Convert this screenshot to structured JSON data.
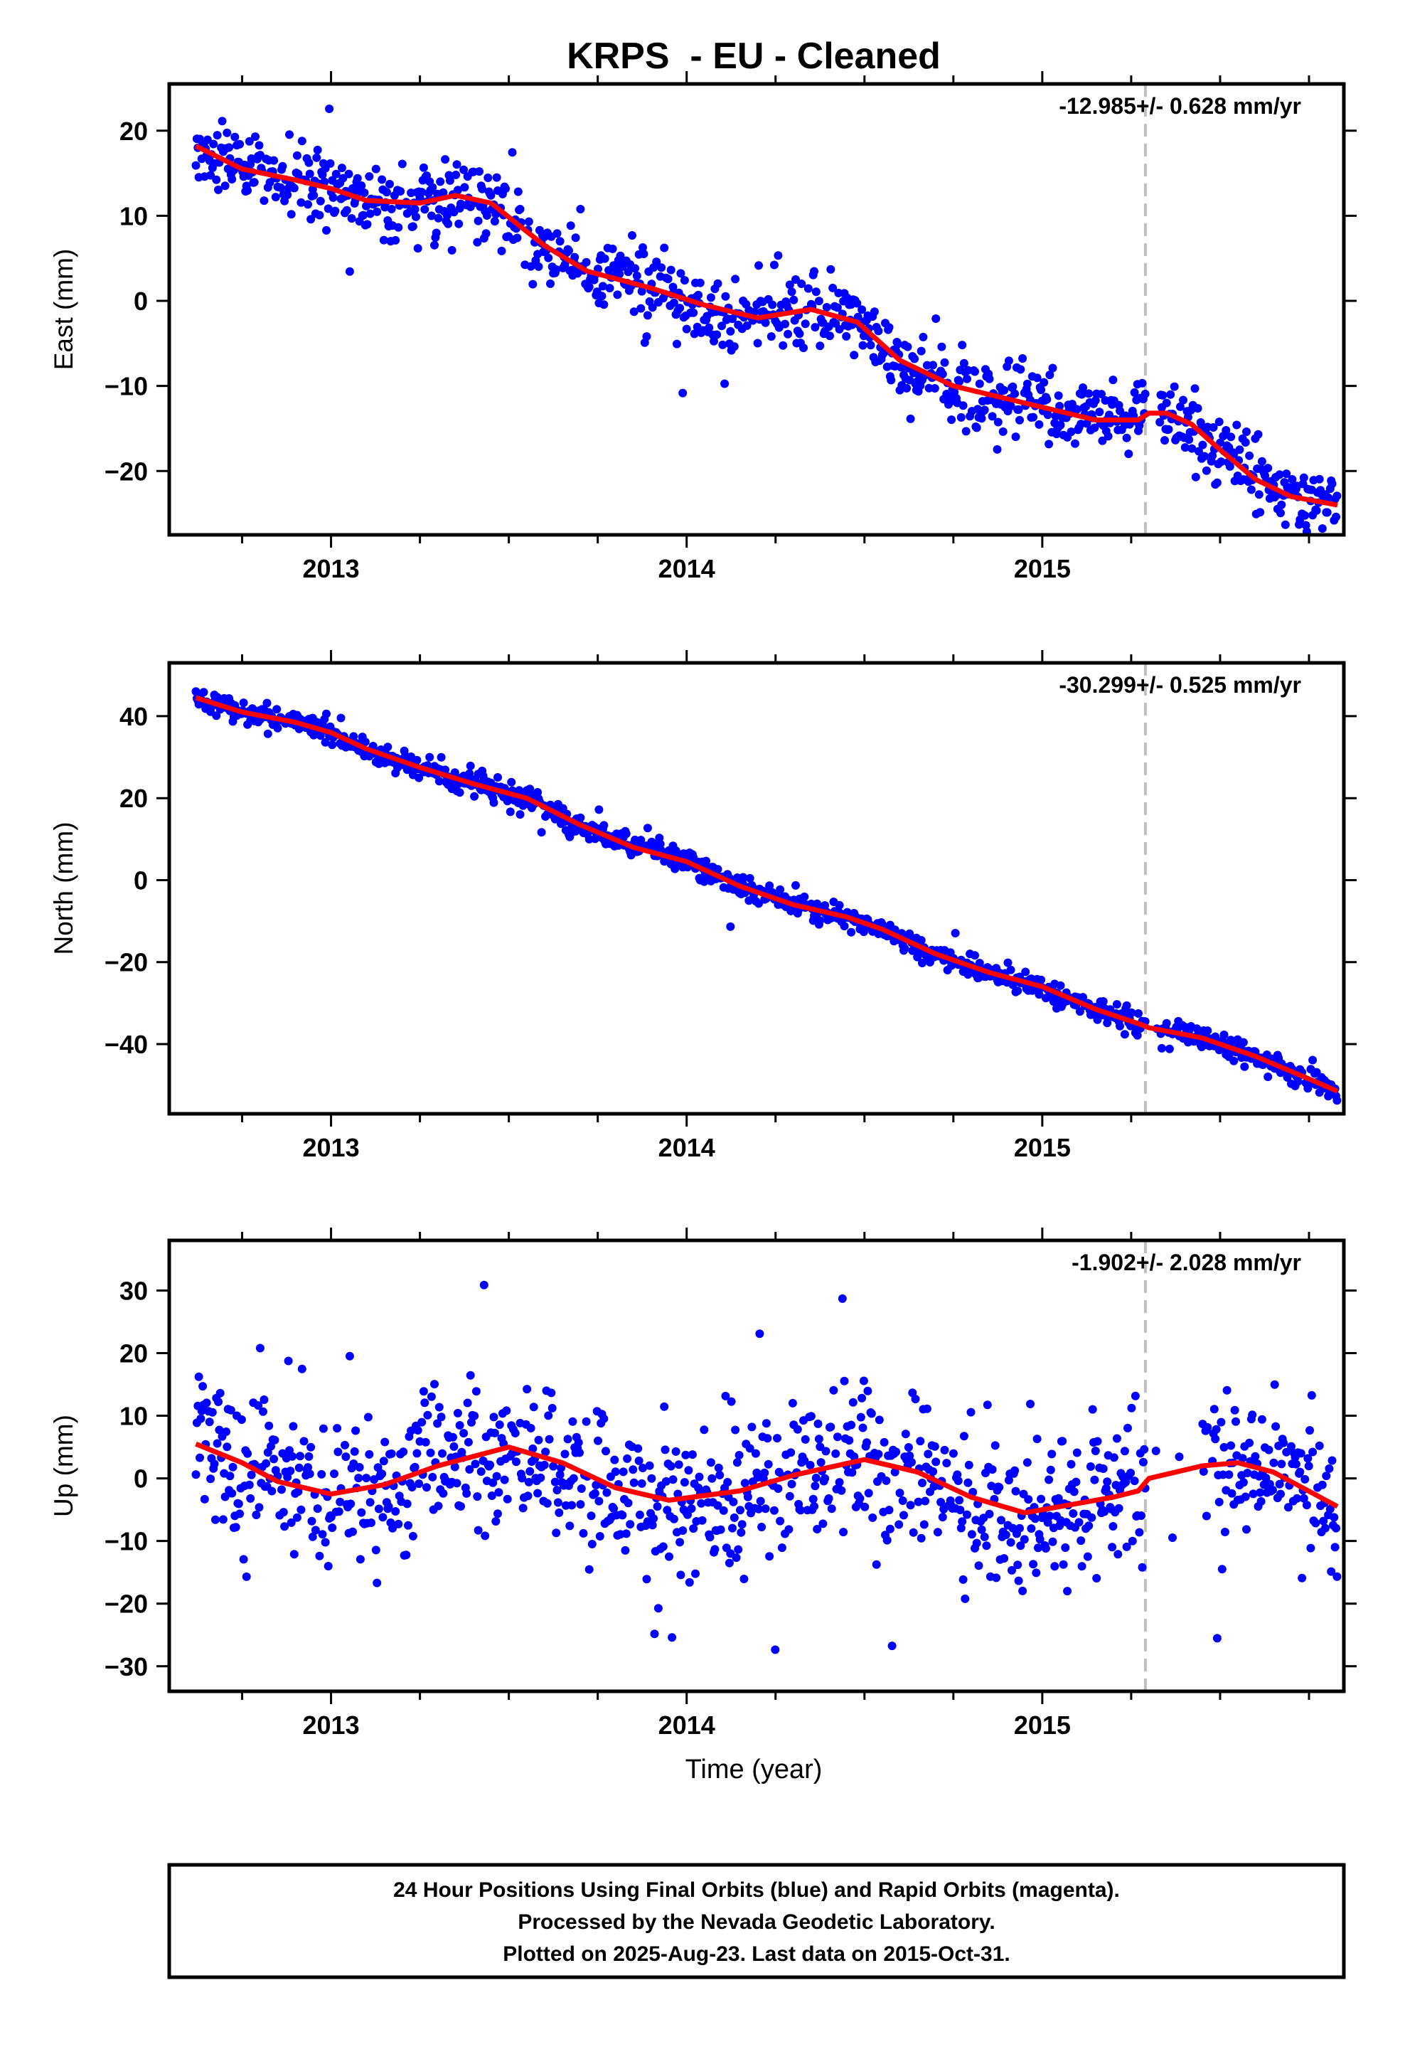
{
  "title": "KRPS  - EU - Cleaned",
  "xlabel": "Time (year)",
  "footer": [
    "24 Hour Positions Using Final Orbits (blue) and Rapid Orbits (magenta).",
    "Processed by the Nevada Geodetic Laboratory.",
    "Plotted on 2025-Aug-23. Last data on 2015-Oct-31."
  ],
  "colors": {
    "points": "#0000ff",
    "model": "#ff0000",
    "break_line": "#c0c0c0",
    "frame": "#000000"
  },
  "chart_data": [
    {
      "type": "scatter",
      "component": "east",
      "ylabel": "East (mm)",
      "rate_label": "-12.985+/- 0.628 mm/yr",
      "xlim": [
        2012.545,
        2015.848
      ],
      "ylim": [
        -27.5,
        25.5
      ],
      "xticks": [
        2013,
        2014,
        2015
      ],
      "yticks": [
        -20,
        -10,
        0,
        10,
        20
      ],
      "grid": false,
      "equipment_change_x": 2015.29,
      "data_range": [
        2012.62,
        2015.83
      ],
      "gap": [
        2015.29,
        2015.33
      ],
      "noise_sd": 2.2,
      "model": {
        "x": [
          2012.62,
          2012.75,
          2012.9,
          2013.0,
          2013.1,
          2013.25,
          2013.35,
          2013.45,
          2013.6,
          2013.72,
          2013.9,
          2014.05,
          2014.2,
          2014.35,
          2014.48,
          2014.6,
          2014.75,
          2014.9,
          2015.05,
          2015.15,
          2015.27,
          2015.3,
          2015.35,
          2015.42,
          2015.5,
          2015.6,
          2015.7,
          2015.83
        ],
        "y": [
          18.2,
          15.5,
          14.2,
          13.2,
          11.8,
          11.5,
          12.4,
          11.5,
          6.5,
          3.5,
          1.5,
          -0.5,
          -2.0,
          -1.0,
          -2.5,
          -7.0,
          -10.0,
          -11.5,
          -13.0,
          -14.0,
          -14.0,
          -13.2,
          -13.2,
          -14.5,
          -17.5,
          -21.0,
          -23.0,
          -24.0
        ]
      }
    },
    {
      "type": "scatter",
      "component": "north",
      "ylabel": "North (mm)",
      "rate_label": "-30.299+/- 0.525 mm/yr",
      "xlim": [
        2012.545,
        2015.848
      ],
      "ylim": [
        -57,
        53
      ],
      "xticks": [
        2013,
        2014,
        2015
      ],
      "yticks": [
        -40,
        -20,
        0,
        20,
        40
      ],
      "grid": false,
      "equipment_change_x": 2015.29,
      "data_range": [
        2012.62,
        2015.83
      ],
      "gap": [
        2015.29,
        2015.33
      ],
      "noise_sd": 1.4,
      "model": {
        "x": [
          2012.62,
          2012.75,
          2012.9,
          2013.0,
          2013.1,
          2013.25,
          2013.4,
          2013.55,
          2013.7,
          2013.85,
          2014.0,
          2014.15,
          2014.3,
          2014.45,
          2014.55,
          2014.7,
          2014.85,
          2015.0,
          2015.15,
          2015.27,
          2015.3,
          2015.45,
          2015.6,
          2015.75,
          2015.83
        ],
        "y": [
          44.5,
          41.0,
          38.5,
          36.0,
          32.0,
          27.5,
          23.5,
          20.0,
          13.5,
          8.0,
          4.5,
          -1.5,
          -6.0,
          -9.0,
          -12.0,
          -18.0,
          -22.5,
          -26.0,
          -31.5,
          -35.0,
          -36.0,
          -38.5,
          -43.0,
          -48.5,
          -51.5
        ]
      }
    },
    {
      "type": "scatter",
      "component": "up",
      "ylabel": "Up (mm)",
      "rate_label": "-1.902+/- 2.028 mm/yr",
      "xlim": [
        2012.545,
        2015.848
      ],
      "ylim": [
        -34,
        38
      ],
      "xticks": [
        2013,
        2014,
        2015
      ],
      "yticks": [
        -30,
        -20,
        -10,
        0,
        10,
        20,
        30
      ],
      "grid": false,
      "equipment_change_x": 2015.29,
      "data_range": [
        2012.62,
        2015.83
      ],
      "gap": [
        2015.29,
        2015.45
      ],
      "noise_sd": 6.0,
      "model": {
        "x": [
          2012.62,
          2012.75,
          2012.85,
          2013.0,
          2013.15,
          2013.3,
          2013.5,
          2013.65,
          2013.8,
          2013.95,
          2014.15,
          2014.3,
          2014.5,
          2014.65,
          2014.8,
          2014.95,
          2015.1,
          2015.2,
          2015.27,
          2015.3,
          2015.45,
          2015.55,
          2015.65,
          2015.83
        ],
        "y": [
          5.5,
          2.5,
          -0.5,
          -2.5,
          -1.0,
          2.0,
          5.0,
          2.5,
          -1.5,
          -3.5,
          -2.0,
          0.5,
          3.0,
          1.0,
          -3.0,
          -5.5,
          -4.0,
          -3.0,
          -2.0,
          0.0,
          2.0,
          2.5,
          1.0,
          -4.5
        ]
      }
    }
  ]
}
